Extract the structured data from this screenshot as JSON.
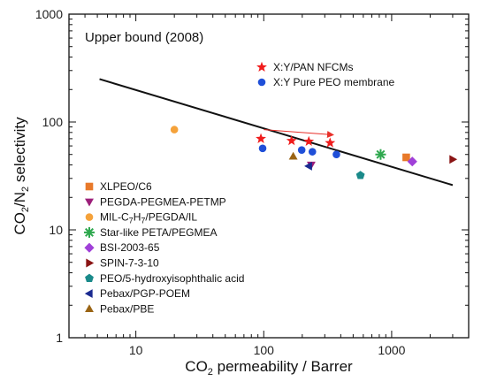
{
  "chart_data": {
    "type": "scatter",
    "x_scale": "log",
    "y_scale": "log",
    "xlim": [
      3,
      4000
    ],
    "ylim": [
      1,
      1000
    ],
    "x_ticks": [
      10,
      100,
      1000
    ],
    "y_ticks": [
      1,
      10,
      100,
      1000
    ],
    "x_tick_labels": [
      "10",
      "100",
      "1000"
    ],
    "y_tick_labels": [
      "1",
      "10",
      "100",
      "1000"
    ],
    "xlabel": {
      "base": "CO",
      "sub": "2",
      "rest": " permeability / Barrer"
    },
    "ylabel": {
      "a": "CO",
      "a_sub": "2",
      "b": "/N",
      "b_sub": "2",
      "rest": " selectivity"
    },
    "grid": false,
    "annotation": "Upper bound (2008)",
    "upper_bound": {
      "x": [
        5.2,
        3000
      ],
      "y": [
        250,
        26
      ]
    },
    "arrow": {
      "from": [
        100,
        85
      ],
      "to": [
        350,
        76
      ],
      "color": "#e8302a"
    },
    "series": [
      {
        "name": "X:Y/PAN NFCMs",
        "marker": "star",
        "color": "#f01c1c",
        "x": [
          95,
          165,
          225,
          330
        ],
        "y": [
          70,
          67,
          66,
          64
        ]
      },
      {
        "name": "X:Y Pure PEO membrane",
        "marker": "circle",
        "color": "#1f4fd8",
        "x": [
          98,
          198,
          240,
          370
        ],
        "y": [
          57,
          55,
          53,
          50
        ]
      },
      {
        "name": "XLPEO/C6",
        "marker": "square",
        "color": "#e8792a",
        "x": [
          1300
        ],
        "y": [
          47
        ]
      },
      {
        "name": "PEGDA-PEGMEA-PETMP",
        "marker": "triangle-down",
        "color": "#9c1e7a",
        "x": [
          235
        ],
        "y": [
          40
        ]
      },
      {
        "name": "MIL-C7H7/PEGDA/IL",
        "marker": "circle",
        "color": "#f5a23a",
        "x": [
          20
        ],
        "y": [
          85
        ]
      },
      {
        "name": "Star-like PETA/PEGMEA",
        "marker": "asterisk",
        "color": "#2ea84e",
        "x": [
          820
        ],
        "y": [
          50
        ]
      },
      {
        "name": "BSI-2003-65",
        "marker": "diamond",
        "color": "#a040d8",
        "x": [
          1450
        ],
        "y": [
          43
        ]
      },
      {
        "name": "SPIN-7-3-10",
        "marker": "triangle-right",
        "color": "#8a1414",
        "x": [
          3000
        ],
        "y": [
          45
        ]
      },
      {
        "name": "PEO/5-hydroxyisophthalic acid",
        "marker": "pentagon",
        "color": "#1a8a8a",
        "x": [
          570
        ],
        "y": [
          32
        ]
      },
      {
        "name": "Pebax/PGP-POEM",
        "marker": "triangle-left",
        "color": "#1a2a90",
        "x": [
          225
        ],
        "y": [
          39
        ]
      },
      {
        "name": "Pebax/PBE",
        "marker": "triangle-up",
        "color": "#9a6414",
        "x": [
          170
        ],
        "y": [
          48
        ]
      }
    ],
    "legend_top": [
      {
        "label": "X:Y/PAN NFCMs",
        "series": 0
      },
      {
        "label": "X:Y Pure PEO membrane",
        "series": 1
      }
    ],
    "legend_bottom": [
      {
        "label": "XLPEO/C6",
        "series": 2
      },
      {
        "label": "PEGDA-PEGMEA-PETMP",
        "series": 3
      },
      {
        "label_parts": [
          "MIL-C",
          "7",
          "H",
          "7",
          "/PEGDA/IL"
        ],
        "series": 4
      },
      {
        "label": "Star-like PETA/PEGMEA",
        "series": 5
      },
      {
        "label": "BSI-2003-65",
        "series": 6
      },
      {
        "label": "SPIN-7-3-10",
        "series": 7
      },
      {
        "label": "PEO/5-hydroxyisophthalic acid",
        "series": 8
      },
      {
        "label": "Pebax/PGP-POEM",
        "series": 9
      },
      {
        "label": "Pebax/PBE",
        "series": 10
      }
    ]
  }
}
